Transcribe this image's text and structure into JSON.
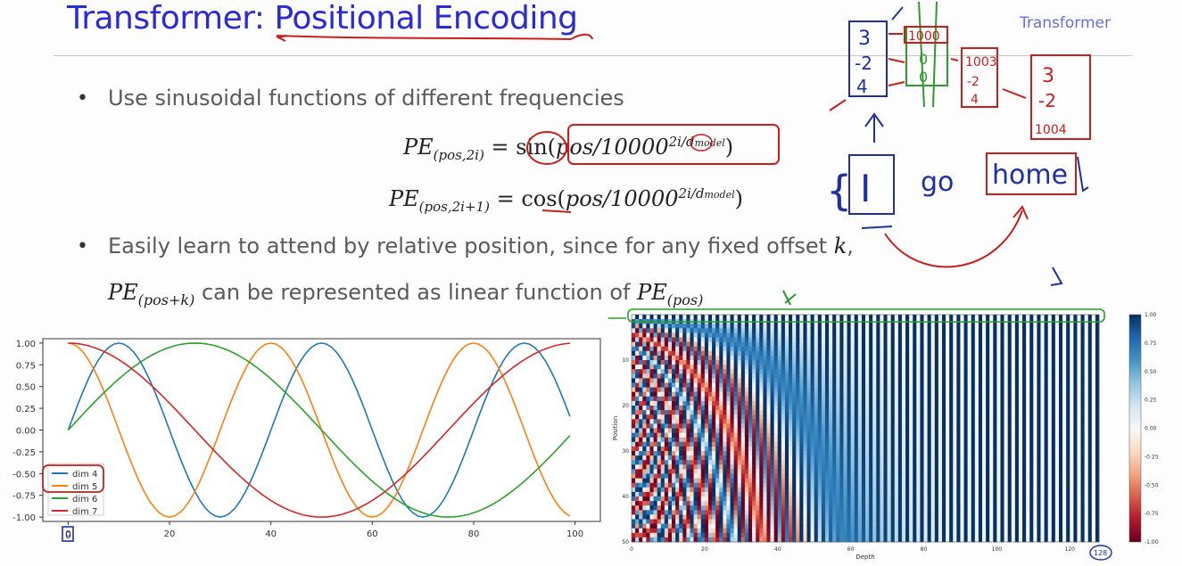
{
  "slide": {
    "title": "Transformer: Positional Encoding",
    "section": "Transformer",
    "bullet1": "Use sinusoidal functions of different frequencies",
    "bullet2_pre": "Easily learn to attend by relative position, since for any fixed offset ",
    "bullet2_k": "k",
    "bullet2_post": ",",
    "line3_mid": " can be represented as linear function of "
  },
  "equations": {
    "eq1_lhs": "PE",
    "eq1_sub": "(pos,2i)",
    "eq1_fn": "sin",
    "eq1_arg": "pos/10000",
    "eq1_sup": "2i/d",
    "eq1_supsub": "model",
    "eq2_lhs": "PE",
    "eq2_sub": "(pos,2i+1)",
    "eq2_fn": "cos",
    "eq2_arg": "pos/10000",
    "eq2_sup": "2i/d",
    "eq2_supsub": "model",
    "pek_sub": "(pos+k)",
    "pe_sub": "(pos)"
  },
  "annotations": {
    "vec1": [
      "3",
      "-2",
      "4"
    ],
    "pe_vec": [
      "1000",
      "0",
      "0"
    ],
    "vec2": [
      "1003",
      "-2",
      "4"
    ],
    "vec3": [
      "3",
      "-2",
      "1004"
    ],
    "words": [
      "I",
      "go",
      "home"
    ],
    "zero_mark": "0",
    "depth_mark": "128"
  },
  "chart_data": [
    {
      "type": "line",
      "x": [
        0,
        99
      ],
      "xticks": [
        "0",
        "20",
        "40",
        "60",
        "80",
        "100"
      ],
      "yticks": [
        "1.00",
        "0.75",
        "0.50",
        "0.25",
        "0.00",
        "-0.25",
        "-0.50",
        "-0.75",
        "-1.00"
      ],
      "xlim": [
        -5,
        105
      ],
      "ylim": [
        -1.05,
        1.05
      ],
      "legend": "lower-left",
      "series": [
        {
          "name": "dim 4",
          "color": "#1f77b4",
          "fn": "sin",
          "period": 40
        },
        {
          "name": "dim 5",
          "color": "#ff7f0e",
          "fn": "cos",
          "period": 40
        },
        {
          "name": "dim 6",
          "color": "#2ca02c",
          "fn": "sin",
          "period": 100
        },
        {
          "name": "dim 7",
          "color": "#d62728",
          "fn": "cos",
          "period": 100
        }
      ]
    },
    {
      "type": "heatmap",
      "xlabel": "Depth",
      "ylabel": "Position",
      "positions": 50,
      "depth": 128,
      "xticks": [
        "0",
        "20",
        "40",
        "60",
        "80",
        "100",
        "120"
      ],
      "yticks": [
        "10",
        "20",
        "30",
        "40",
        "50"
      ],
      "colorbar_ticks": [
        "1.00",
        "0.75",
        "0.50",
        "0.25",
        "0.00",
        "-0.25",
        "-0.50",
        "-0.75",
        "-1.00"
      ],
      "colormap": "RdBu"
    }
  ]
}
